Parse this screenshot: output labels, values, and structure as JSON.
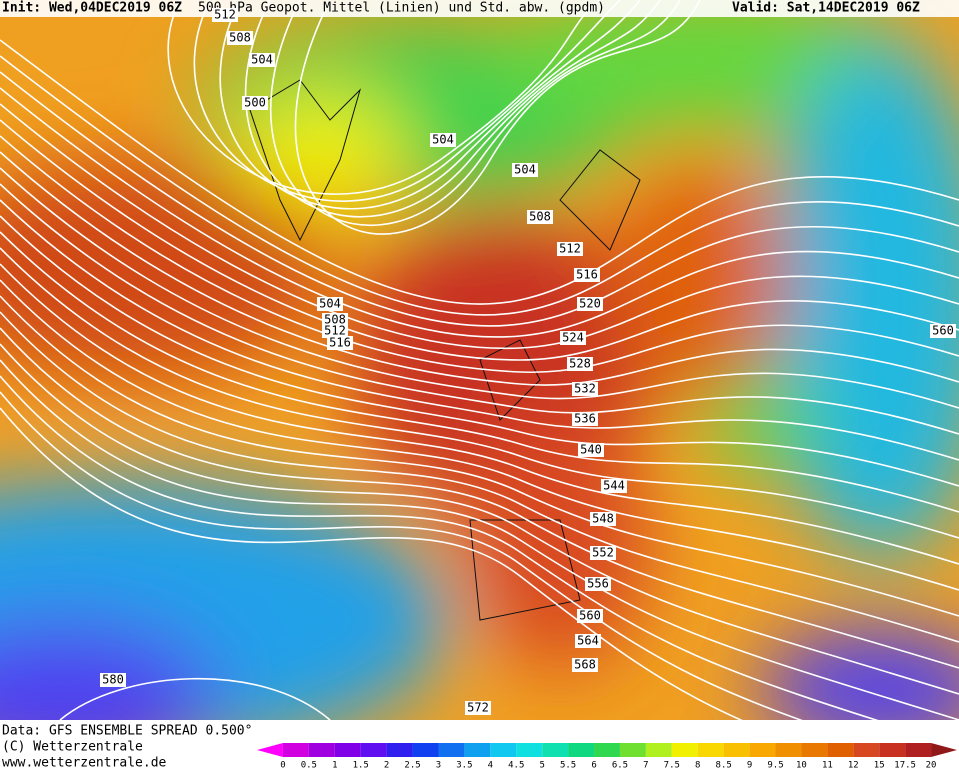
{
  "header": {
    "init": "Init: Wed,04DEC2019 06Z",
    "title": "500 hPa Geopot. Mittel (Linien) und Std. abw. (gpdm)",
    "valid": "Valid: Sat,14DEC2019 06Z"
  },
  "contour_labels": [
    "512",
    "508",
    "504",
    "500",
    "504",
    "504",
    "508",
    "512",
    "516",
    "520",
    "504",
    "508",
    "512",
    "516",
    "524",
    "528",
    "532",
    "536",
    "540",
    "544",
    "548",
    "552",
    "556",
    "560",
    "564",
    "568",
    "572",
    "580",
    "560"
  ],
  "footer": {
    "data": "Data: GFS ENSEMBLE SPREAD 0.500°",
    "copyright": "(C) Wetterzentrale",
    "url": "www.wetterzentrale.de"
  },
  "colorbar": {
    "labels": [
      "0",
      "0.5",
      "1",
      "1.5",
      "2",
      "2.5",
      "3",
      "3.5",
      "4",
      "4.5",
      "5",
      "5.5",
      "6",
      "6.5",
      "7",
      "7.5",
      "8",
      "8.5",
      "9",
      "9.5",
      "10",
      "11",
      "12",
      "15",
      "17.5",
      "20"
    ],
    "colors": [
      "#ff00ff",
      "#d000e0",
      "#a000e0",
      "#8000e8",
      "#6010f0",
      "#3020f0",
      "#1040f0",
      "#1070f0",
      "#10a0f0",
      "#10c8f0",
      "#10e0e0",
      "#10e0b0",
      "#10d880",
      "#30d850",
      "#70e030",
      "#b0f020",
      "#f0f000",
      "#f8d800",
      "#f8c000",
      "#f8a800",
      "#f09000",
      "#e87800",
      "#e06000",
      "#d84820",
      "#c83020",
      "#b02020",
      "#901818"
    ]
  }
}
